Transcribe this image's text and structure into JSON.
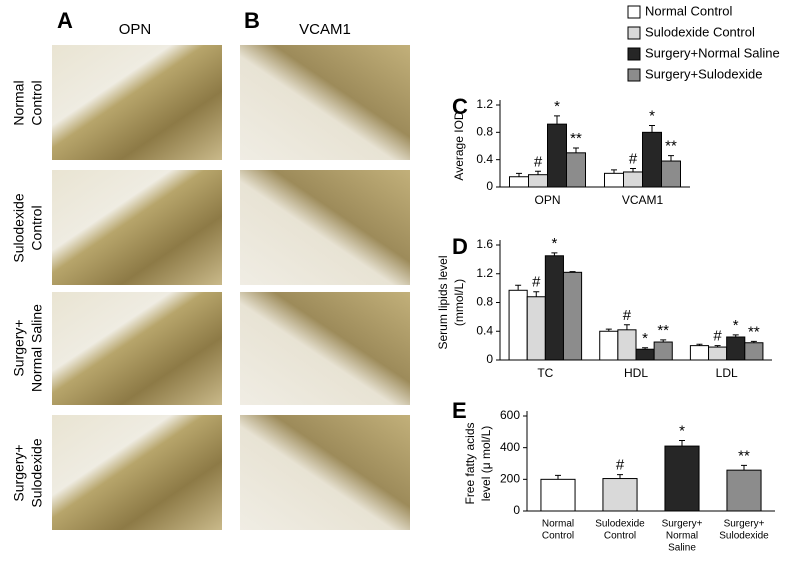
{
  "figure": {
    "panel_a": {
      "label": "A",
      "title": "OPN"
    },
    "panel_b": {
      "label": "B",
      "title": "VCAM1"
    },
    "rows": [
      [
        "Normal",
        "Control"
      ],
      [
        "Sulodexide",
        "Control"
      ],
      [
        "Surgery+",
        "Normal Saline"
      ],
      [
        "Surgery+",
        "Sulodexide"
      ]
    ]
  },
  "chart_data": [
    {
      "type": "bar",
      "panel": "C",
      "ylabel": [
        "Average IOD"
      ],
      "categories": [
        "OPN",
        "VCAM1"
      ],
      "series": [
        {
          "name": "Normal Control",
          "color": "#ffffff",
          "values": [
            0.15,
            0.2
          ],
          "errors": [
            0.05,
            0.05
          ],
          "markers": [
            null,
            null
          ]
        },
        {
          "name": "Sulodexide Control",
          "color": "#d9d9d9",
          "values": [
            0.18,
            0.22
          ],
          "errors": [
            0.05,
            0.05
          ],
          "markers": [
            "#",
            "#"
          ]
        },
        {
          "name": "Surgery+Normal Saline",
          "color": "#262626",
          "values": [
            0.92,
            0.8
          ],
          "errors": [
            0.12,
            0.1
          ],
          "markers": [
            "*",
            "*"
          ]
        },
        {
          "name": "Surgery+Sulodexide",
          "color": "#8c8c8c",
          "values": [
            0.5,
            0.38
          ],
          "errors": [
            0.07,
            0.08
          ],
          "markers": [
            "**",
            "**"
          ]
        }
      ],
      "ylim": [
        0,
        1.2
      ],
      "yticks": [
        0,
        0.4,
        0.8,
        1.2
      ]
    },
    {
      "type": "bar",
      "panel": "D",
      "ylabel": [
        "Serum lipids level",
        "(mmol/L)"
      ],
      "categories": [
        "TC",
        "HDL",
        "LDL"
      ],
      "series": [
        {
          "color": "#ffffff",
          "values": [
            0.97,
            0.4,
            0.2
          ],
          "errors": [
            0.07,
            0.03,
            0.02
          ],
          "markers": [
            null,
            null,
            null
          ]
        },
        {
          "color": "#d9d9d9",
          "values": [
            0.88,
            0.42,
            0.18
          ],
          "errors": [
            0.07,
            0.07,
            0.02
          ],
          "markers": [
            "#",
            "#",
            "#"
          ]
        },
        {
          "color": "#262626",
          "values": [
            1.45,
            0.15,
            0.32
          ],
          "errors": [
            0.04,
            0.02,
            0.03
          ],
          "markers": [
            "*",
            "*",
            "*"
          ]
        },
        {
          "color": "#8c8c8c",
          "values": [
            1.22,
            0.25,
            0.24
          ],
          "errors": [
            0.01,
            0.03,
            0.02
          ],
          "markers": [
            null,
            "**",
            "**"
          ]
        }
      ],
      "ylim": [
        0,
        1.6
      ],
      "yticks": [
        0,
        0.4,
        0.8,
        1.2,
        1.6
      ]
    },
    {
      "type": "bar",
      "panel": "E",
      "ylabel": [
        "Free fatty acids",
        "level (μ mol/L)"
      ],
      "categories": [
        [
          "Normal",
          "Control"
        ],
        [
          "Sulodexide",
          "Control"
        ],
        [
          "Surgery+",
          "Normal",
          "Saline"
        ],
        [
          "Surgery+",
          "Sulodexide"
        ]
      ],
      "values": [
        200,
        205,
        410,
        258
      ],
      "errors": [
        25,
        25,
        35,
        30
      ],
      "colors": [
        "#ffffff",
        "#d9d9d9",
        "#262626",
        "#8c8c8c"
      ],
      "markers": [
        null,
        "#",
        "*",
        "**"
      ],
      "ylim": [
        0,
        600
      ],
      "yticks": [
        0,
        200,
        400,
        600
      ]
    }
  ]
}
